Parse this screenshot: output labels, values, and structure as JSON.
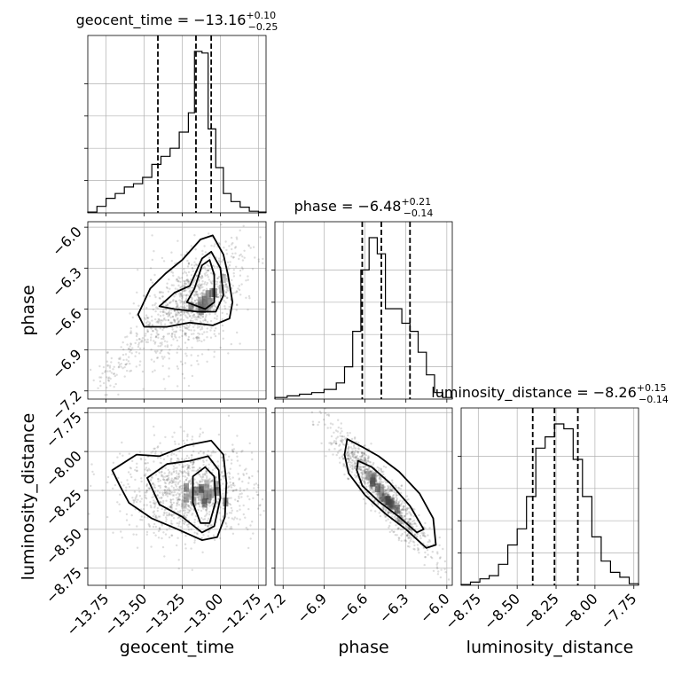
{
  "chart_data": {
    "type": "corner",
    "parameters": [
      "geocent_time",
      "phase",
      "luminosity_distance"
    ],
    "axis_labels": {
      "geocent_time": "geocent_time",
      "phase": "phase",
      "luminosity_distance": "luminosity_distance"
    },
    "titles": [
      {
        "name": "geocent_time",
        "median": "-13.16",
        "plus": "+0.10",
        "minus": "-0.25"
      },
      {
        "name": "phase",
        "median": "-6.48",
        "plus": "+0.21",
        "minus": "-0.14"
      },
      {
        "name": "luminosity_distance",
        "median": "-8.26",
        "plus": "+0.15",
        "minus": "-0.14"
      }
    ],
    "ranges": {
      "geocent_time": [
        -13.87,
        -12.7
      ],
      "phase": [
        -7.26,
        -5.96
      ],
      "luminosity_distance": [
        -8.86,
        -7.72
      ]
    },
    "ticks": {
      "geocent_time": [
        "-13.75",
        "-13.50",
        "-13.25",
        "-13.00",
        "-12.75"
      ],
      "phase": [
        "-7.2",
        "-6.9",
        "-6.6",
        "-6.3",
        "-6.0"
      ],
      "luminosity_distance": [
        "-8.75",
        "-8.50",
        "-8.25",
        "-8.00",
        "-7.75"
      ]
    },
    "quantiles": {
      "geocent_time": [
        -13.41,
        -13.16,
        -13.06
      ],
      "phase": [
        -6.62,
        -6.48,
        -6.27
      ],
      "luminosity_distance": [
        -8.4,
        -8.26,
        -8.11
      ]
    },
    "histograms": {
      "geocent_time": [
        [
          -13.87,
          -13.81,
          0.005
        ],
        [
          -13.81,
          -13.75,
          0.04
        ],
        [
          -13.75,
          -13.69,
          0.09
        ],
        [
          -13.69,
          -13.63,
          0.12
        ],
        [
          -13.63,
          -13.57,
          0.16
        ],
        [
          -13.57,
          -13.51,
          0.18
        ],
        [
          -13.51,
          -13.45,
          0.22
        ],
        [
          -13.45,
          -13.39,
          0.3
        ],
        [
          -13.39,
          -13.33,
          0.35
        ],
        [
          -13.33,
          -13.27,
          0.4
        ],
        [
          -13.27,
          -13.21,
          0.5
        ],
        [
          -13.21,
          -13.17,
          0.62
        ],
        [
          -13.17,
          -13.12,
          1.0
        ],
        [
          -13.12,
          -13.08,
          0.99
        ],
        [
          -13.08,
          -13.03,
          0.52
        ],
        [
          -13.03,
          -12.98,
          0.28
        ],
        [
          -12.98,
          -12.93,
          0.12
        ],
        [
          -12.93,
          -12.87,
          0.07
        ],
        [
          -12.87,
          -12.81,
          0.035
        ],
        [
          -12.81,
          -12.75,
          0.01
        ],
        [
          -12.75,
          -12.7,
          0.005
        ]
      ],
      "phase": [
        [
          -7.26,
          -7.17,
          0.01
        ],
        [
          -7.17,
          -7.08,
          0.02
        ],
        [
          -7.08,
          -6.99,
          0.03
        ],
        [
          -6.99,
          -6.9,
          0.04
        ],
        [
          -6.9,
          -6.81,
          0.06
        ],
        [
          -6.81,
          -6.75,
          0.1
        ],
        [
          -6.75,
          -6.69,
          0.2
        ],
        [
          -6.69,
          -6.63,
          0.42
        ],
        [
          -6.63,
          -6.57,
          0.8
        ],
        [
          -6.57,
          -6.51,
          1.0
        ],
        [
          -6.51,
          -6.45,
          0.9
        ],
        [
          -6.45,
          -6.39,
          0.56
        ],
        [
          -6.39,
          -6.33,
          0.56
        ],
        [
          -6.33,
          -6.27,
          0.47
        ],
        [
          -6.27,
          -6.21,
          0.42
        ],
        [
          -6.21,
          -6.15,
          0.29
        ],
        [
          -6.15,
          -6.09,
          0.15
        ],
        [
          -6.09,
          -6.03,
          0.04
        ],
        [
          -6.03,
          -5.96,
          0.01
        ]
      ],
      "luminosity_distance": [
        [
          -8.86,
          -8.8,
          0.005
        ],
        [
          -8.8,
          -8.74,
          0.02
        ],
        [
          -8.74,
          -8.68,
          0.04
        ],
        [
          -8.68,
          -8.62,
          0.06
        ],
        [
          -8.62,
          -8.56,
          0.13
        ],
        [
          -8.56,
          -8.5,
          0.25
        ],
        [
          -8.5,
          -8.44,
          0.35
        ],
        [
          -8.44,
          -8.38,
          0.55
        ],
        [
          -8.38,
          -8.32,
          0.85
        ],
        [
          -8.32,
          -8.26,
          0.92
        ],
        [
          -8.26,
          -8.2,
          1.0
        ],
        [
          -8.2,
          -8.14,
          0.97
        ],
        [
          -8.14,
          -8.08,
          0.78
        ],
        [
          -8.08,
          -8.02,
          0.55
        ],
        [
          -8.02,
          -7.96,
          0.3
        ],
        [
          -7.96,
          -7.9,
          0.15
        ],
        [
          -7.9,
          -7.84,
          0.08
        ],
        [
          -7.84,
          -7.78,
          0.05
        ],
        [
          -7.78,
          -7.72,
          0.01
        ]
      ]
    },
    "pairs": [
      {
        "x": "geocent_time",
        "y": "phase",
        "center": [
          -13.18,
          -6.55
        ],
        "cov": [
          [
            0.03,
            0.018
          ],
          [
            0.018,
            0.045
          ]
        ]
      },
      {
        "x": "geocent_time",
        "y": "luminosity_distance",
        "center": [
          -13.2,
          -8.26
        ],
        "cov": [
          [
            0.045,
            0.0
          ],
          [
            0.0,
            0.022
          ]
        ]
      },
      {
        "x": "phase",
        "y": "luminosity_distance",
        "center": [
          -6.48,
          -8.26
        ],
        "cov": [
          [
            0.033,
            -0.034
          ],
          [
            -0.034,
            0.04
          ]
        ]
      }
    ],
    "contours": {
      "geocent_time|phase": [
        [
          [
            -13.54,
            -6.64
          ],
          [
            -13.46,
            -6.45
          ],
          [
            -13.36,
            -6.34
          ],
          [
            -13.25,
            -6.24
          ],
          [
            -13.13,
            -6.09
          ],
          [
            -13.05,
            -6.06
          ],
          [
            -12.98,
            -6.2
          ],
          [
            -12.95,
            -6.35
          ],
          [
            -12.92,
            -6.55
          ],
          [
            -12.94,
            -6.67
          ],
          [
            -13.05,
            -6.72
          ],
          [
            -13.2,
            -6.7
          ],
          [
            -13.35,
            -6.73
          ],
          [
            -13.5,
            -6.73
          ],
          [
            -13.54,
            -6.64
          ]
        ],
        [
          [
            -13.4,
            -6.58
          ],
          [
            -13.3,
            -6.48
          ],
          [
            -13.2,
            -6.43
          ],
          [
            -13.12,
            -6.23
          ],
          [
            -13.06,
            -6.18
          ],
          [
            -13.0,
            -6.3
          ],
          [
            -12.98,
            -6.5
          ],
          [
            -13.03,
            -6.62
          ],
          [
            -13.15,
            -6.62
          ],
          [
            -13.3,
            -6.6
          ],
          [
            -13.4,
            -6.58
          ]
        ],
        [
          [
            -13.22,
            -6.55
          ],
          [
            -13.17,
            -6.45
          ],
          [
            -13.12,
            -6.28
          ],
          [
            -13.07,
            -6.24
          ],
          [
            -13.04,
            -6.35
          ],
          [
            -13.04,
            -6.55
          ],
          [
            -13.1,
            -6.6
          ],
          [
            -13.22,
            -6.55
          ]
        ]
      ],
      "geocent_time|luminosity_distance": [
        [
          [
            -13.71,
            -8.12
          ],
          [
            -13.55,
            -8.02
          ],
          [
            -13.4,
            -8.03
          ],
          [
            -13.22,
            -7.96
          ],
          [
            -13.06,
            -7.93
          ],
          [
            -12.98,
            -8.02
          ],
          [
            -12.96,
            -8.2
          ],
          [
            -12.97,
            -8.42
          ],
          [
            -13.02,
            -8.55
          ],
          [
            -13.12,
            -8.57
          ],
          [
            -13.28,
            -8.5
          ],
          [
            -13.45,
            -8.43
          ],
          [
            -13.6,
            -8.33
          ],
          [
            -13.66,
            -8.22
          ],
          [
            -13.71,
            -8.12
          ]
        ],
        [
          [
            -13.48,
            -8.17
          ],
          [
            -13.35,
            -8.08
          ],
          [
            -13.2,
            -8.06
          ],
          [
            -13.08,
            -8.03
          ],
          [
            -13.01,
            -8.12
          ],
          [
            -13.0,
            -8.3
          ],
          [
            -13.04,
            -8.48
          ],
          [
            -13.12,
            -8.52
          ],
          [
            -13.25,
            -8.42
          ],
          [
            -13.4,
            -8.34
          ],
          [
            -13.48,
            -8.17
          ]
        ],
        [
          [
            -13.18,
            -8.16
          ],
          [
            -13.1,
            -8.1
          ],
          [
            -13.04,
            -8.16
          ],
          [
            -13.03,
            -8.32
          ],
          [
            -13.07,
            -8.46
          ],
          [
            -13.13,
            -8.46
          ],
          [
            -13.18,
            -8.33
          ],
          [
            -13.18,
            -8.16
          ]
        ]
      ],
      "phase|luminosity_distance": [
        [
          [
            -6.73,
            -7.92
          ],
          [
            -6.62,
            -7.97
          ],
          [
            -6.5,
            -8.03
          ],
          [
            -6.35,
            -8.13
          ],
          [
            -6.2,
            -8.27
          ],
          [
            -6.1,
            -8.43
          ],
          [
            -6.08,
            -8.6
          ],
          [
            -6.15,
            -8.62
          ],
          [
            -6.3,
            -8.5
          ],
          [
            -6.45,
            -8.4
          ],
          [
            -6.6,
            -8.28
          ],
          [
            -6.72,
            -8.14
          ],
          [
            -6.75,
            -8.02
          ],
          [
            -6.73,
            -7.92
          ]
        ],
        [
          [
            -6.65,
            -8.06
          ],
          [
            -6.55,
            -8.1
          ],
          [
            -6.42,
            -8.2
          ],
          [
            -6.27,
            -8.35
          ],
          [
            -6.17,
            -8.5
          ],
          [
            -6.22,
            -8.52
          ],
          [
            -6.35,
            -8.42
          ],
          [
            -6.5,
            -8.32
          ],
          [
            -6.62,
            -8.22
          ],
          [
            -6.66,
            -8.12
          ],
          [
            -6.65,
            -8.06
          ]
        ]
      ]
    }
  }
}
